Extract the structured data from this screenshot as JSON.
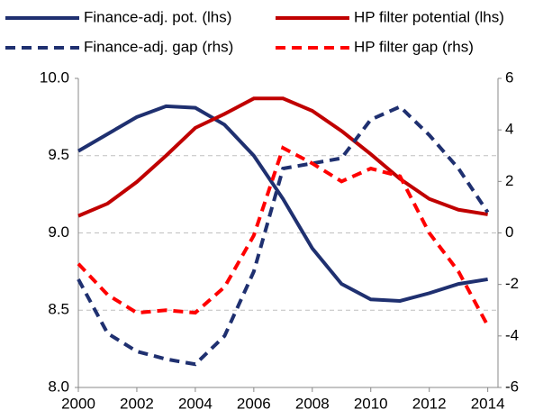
{
  "chart_data": {
    "type": "line",
    "x": [
      2000,
      2001,
      2002,
      2003,
      2004,
      2005,
      2006,
      2007,
      2008,
      2009,
      2010,
      2011,
      2012,
      2013,
      2014
    ],
    "series": [
      {
        "name": "Finance-adj. pot. (lhs)",
        "color": "#1f3070",
        "style": "solid",
        "axis": "y",
        "values": [
          9.53,
          9.64,
          9.75,
          9.82,
          9.81,
          9.7,
          9.5,
          9.22,
          8.9,
          8.67,
          8.57,
          8.56,
          8.61,
          8.67,
          8.7
        ]
      },
      {
        "name": "HP filter potential (lhs)",
        "color": "#c00000",
        "style": "solid",
        "axis": "y",
        "values": [
          9.11,
          9.19,
          9.33,
          9.5,
          9.68,
          9.77,
          9.87,
          9.87,
          9.79,
          9.66,
          9.51,
          9.35,
          9.22,
          9.15,
          9.12
        ]
      },
      {
        "name": "Finance-adj. gap (rhs)",
        "color": "#1f3070",
        "style": "dashed",
        "axis": "y2",
        "values": [
          -1.8,
          -3.9,
          -4.6,
          -4.9,
          -5.1,
          -4.0,
          -1.5,
          2.5,
          2.7,
          2.9,
          4.4,
          4.9,
          3.8,
          2.5,
          0.8
        ]
      },
      {
        "name": "HP filter gap (rhs)",
        "color": "#ff0000",
        "style": "dashed",
        "axis": "y2",
        "values": [
          -1.2,
          -2.4,
          -3.1,
          -3.0,
          -3.1,
          -2.1,
          -0.1,
          3.3,
          2.7,
          2.0,
          2.5,
          2.2,
          0.0,
          -1.5,
          -3.6
        ]
      }
    ],
    "xlim": [
      2000,
      2014.35
    ],
    "xticks": [
      2000,
      2002,
      2004,
      2006,
      2008,
      2010,
      2012,
      2014
    ],
    "ylim": [
      8.0,
      10.0
    ],
    "yticks": [
      {
        "value": 8.0,
        "label": "8.0"
      },
      8.5,
      {
        "value": 9.0,
        "label": "9.0"
      },
      9.5,
      {
        "value": 10.0,
        "label": "10.0"
      }
    ],
    "y2lim": [
      -6,
      6
    ],
    "y2ticks": [
      -6,
      -4,
      -2,
      0,
      2,
      4,
      6
    ],
    "grid": true
  }
}
